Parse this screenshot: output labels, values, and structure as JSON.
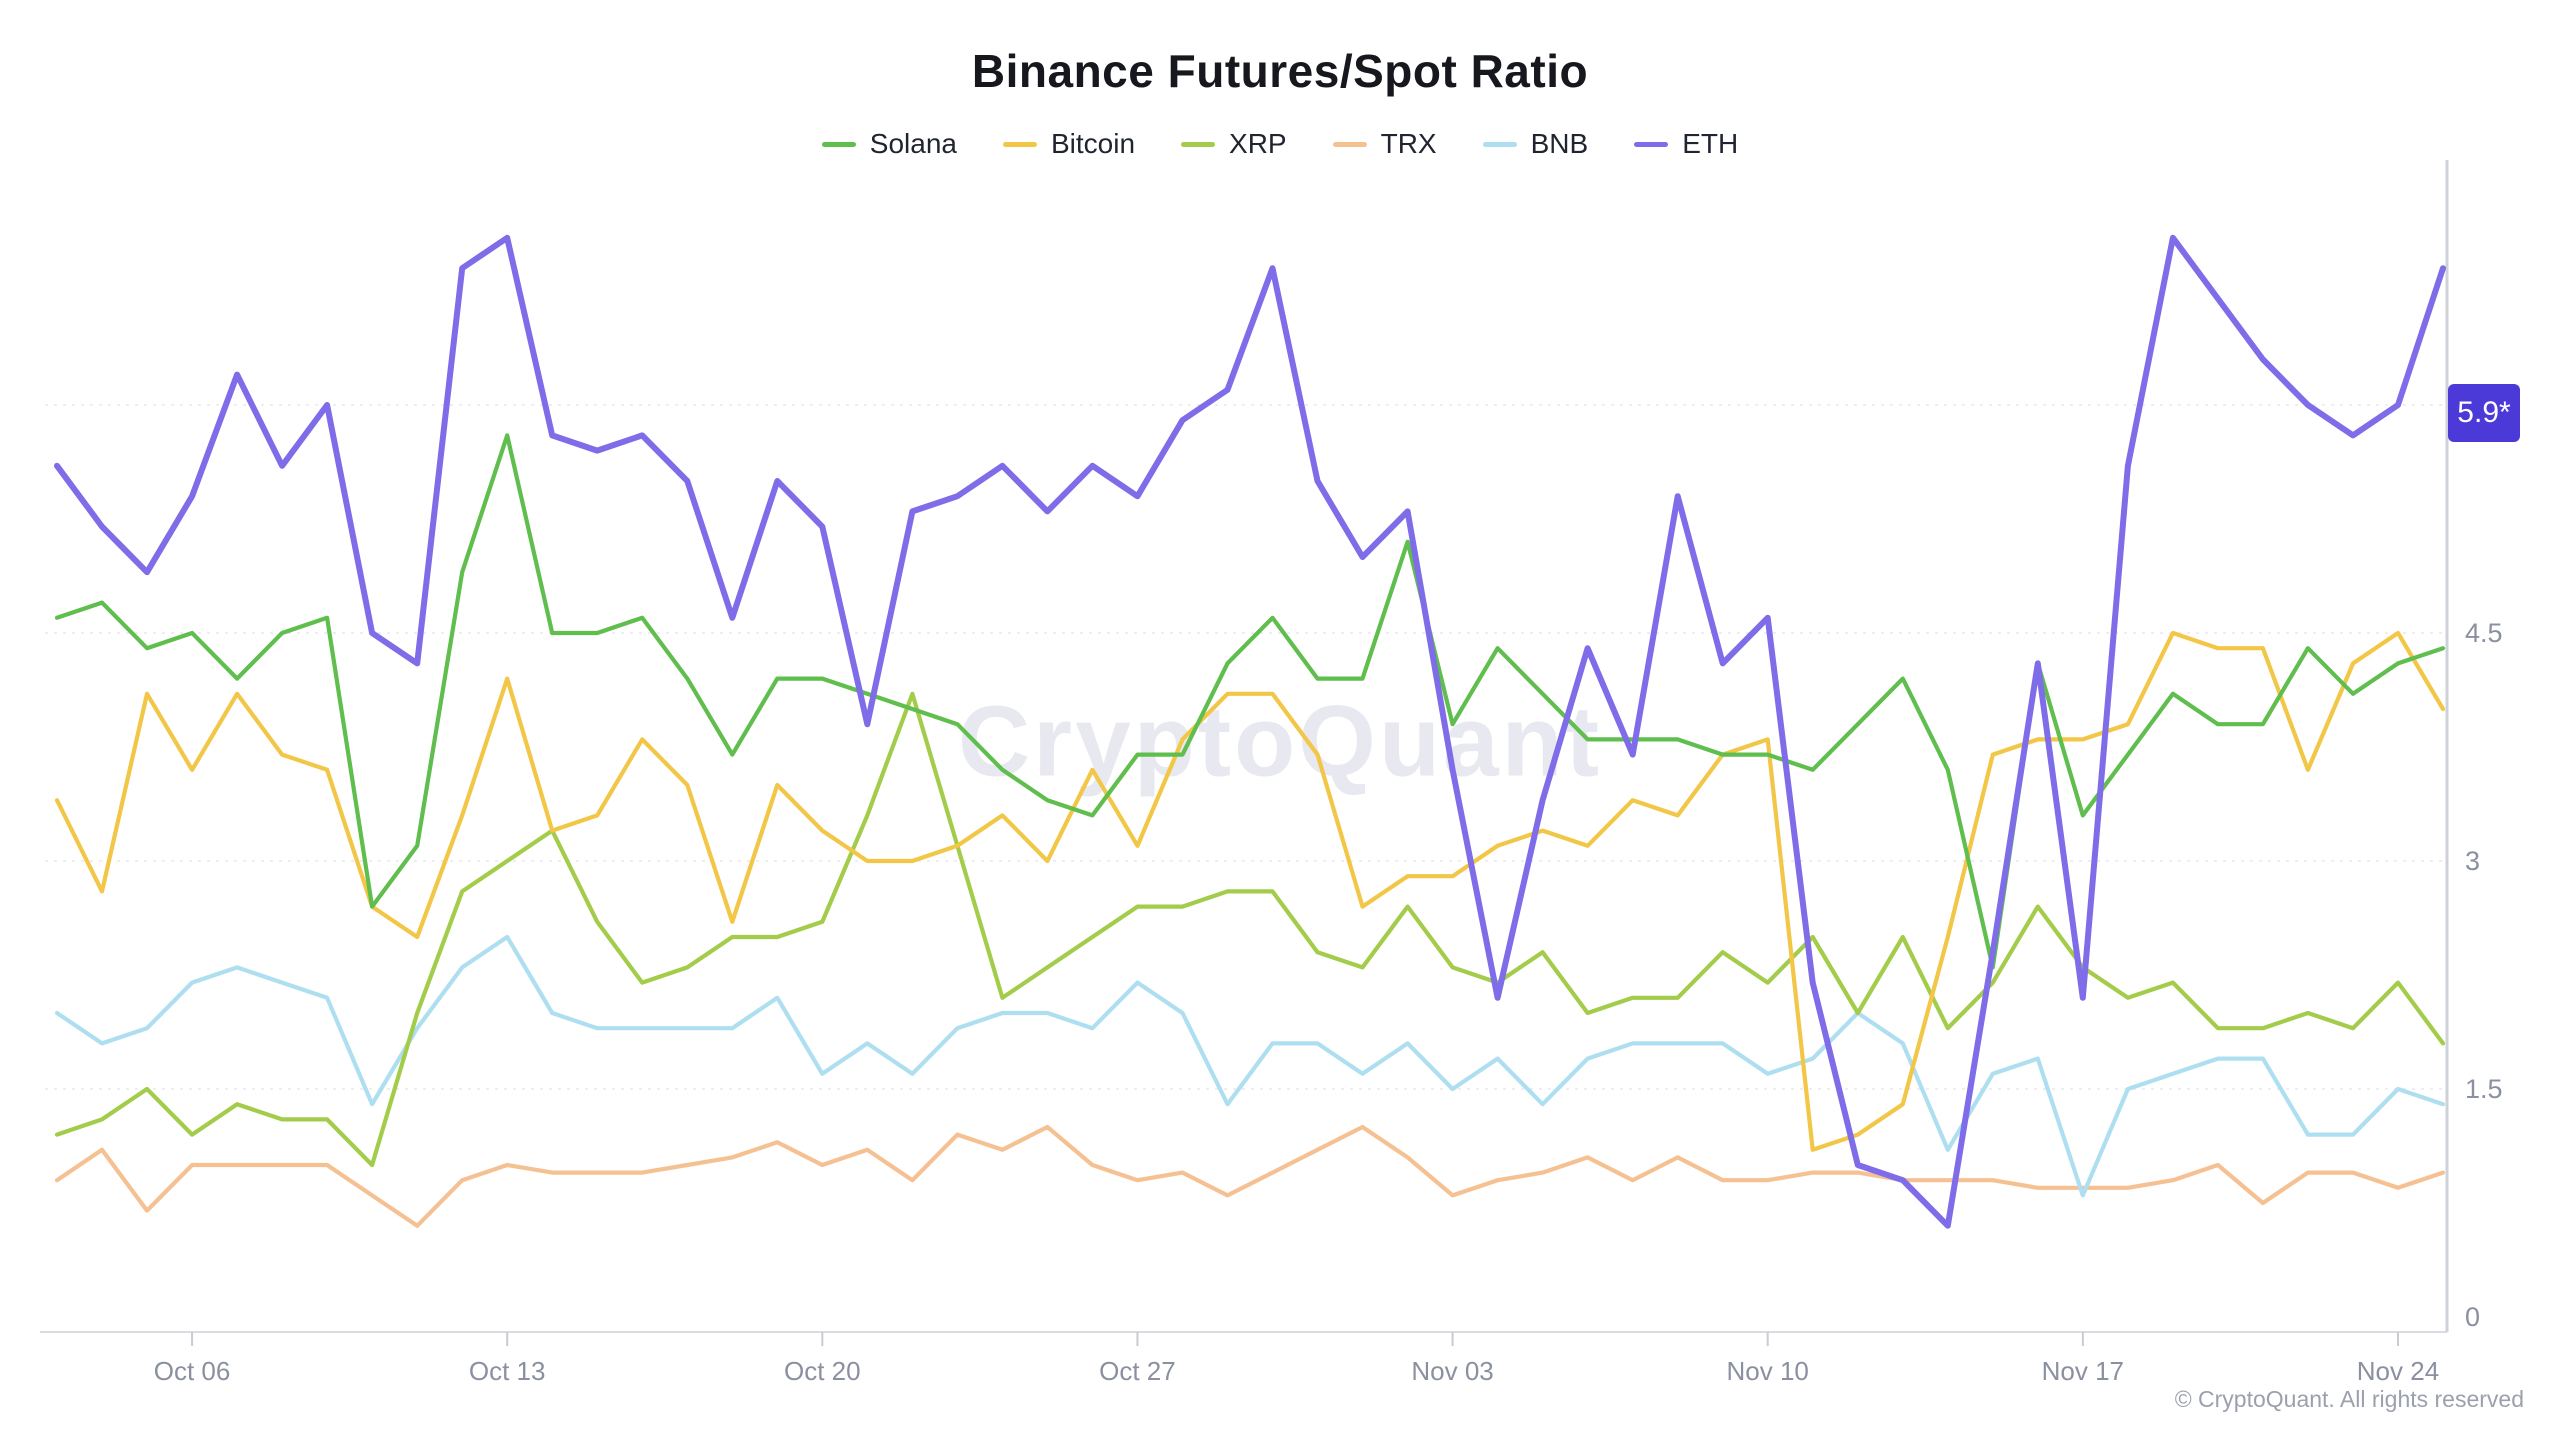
{
  "header": {
    "title": "Binance Futures/Spot Ratio"
  },
  "footer": {
    "copyright": "© CryptoQuant. All rights reserved"
  },
  "watermark": {
    "text": "CryptoQuant"
  },
  "badge": {
    "text": "5.9*",
    "series": "ETH",
    "value": 5.95,
    "color": "#4b3ad8"
  },
  "chart_data": {
    "type": "line",
    "title": "Binance Futures/Spot Ratio",
    "xlabel": "",
    "ylabel": "",
    "ylim": [
      0,
      7.6
    ],
    "y_axis_side": "right",
    "grid": "dotted-horizontal",
    "grid_levels": [
      1.5,
      3,
      4.5,
      6
    ],
    "y_tick_labels": [
      "0",
      "1.5",
      "3",
      "4.5"
    ],
    "y_tick_values": [
      0,
      1.5,
      3,
      4.5
    ],
    "legend_position": "top",
    "x_tick_labels": [
      "Oct 06",
      "Oct 13",
      "Oct 20",
      "Oct 27",
      "Nov 03",
      "Nov 10",
      "Nov 17",
      "Nov 24"
    ],
    "x_tick_indices": [
      3,
      10,
      17,
      24,
      31,
      38,
      45,
      52
    ],
    "x": [
      "Oct 03",
      "Oct 04",
      "Oct 05",
      "Oct 06",
      "Oct 07",
      "Oct 08",
      "Oct 09",
      "Oct 10",
      "Oct 11",
      "Oct 12",
      "Oct 13",
      "Oct 14",
      "Oct 15",
      "Oct 16",
      "Oct 17",
      "Oct 18",
      "Oct 19",
      "Oct 20",
      "Oct 21",
      "Oct 22",
      "Oct 23",
      "Oct 24",
      "Oct 25",
      "Oct 26",
      "Oct 27",
      "Oct 28",
      "Oct 29",
      "Oct 30",
      "Oct 31",
      "Nov 01",
      "Nov 02",
      "Nov 03",
      "Nov 04",
      "Nov 05",
      "Nov 06",
      "Nov 07",
      "Nov 08",
      "Nov 09",
      "Nov 10",
      "Nov 11",
      "Nov 12",
      "Nov 13",
      "Nov 14",
      "Nov 15",
      "Nov 16",
      "Nov 17",
      "Nov 18",
      "Nov 19",
      "Nov 20",
      "Nov 21",
      "Nov 22",
      "Nov 23",
      "Nov 24",
      "Nov 25"
    ],
    "series": [
      {
        "name": "Solana",
        "color": "#5fbe4d",
        "width": 4.2,
        "values": [
          4.6,
          4.7,
          4.4,
          4.5,
          4.2,
          4.5,
          4.6,
          2.7,
          3.1,
          4.9,
          5.8,
          4.5,
          4.5,
          4.6,
          4.2,
          3.7,
          4.2,
          4.2,
          4.1,
          4.0,
          3.9,
          3.6,
          3.4,
          3.3,
          3.7,
          3.7,
          4.3,
          4.6,
          4.2,
          4.2,
          5.1,
          3.9,
          4.4,
          4.1,
          3.8,
          3.8,
          3.8,
          3.7,
          3.7,
          3.6,
          3.9,
          4.2,
          3.6,
          2.3,
          4.3,
          3.3,
          3.7,
          4.1,
          3.9,
          3.9,
          4.4,
          4.1,
          4.3,
          4.4
        ]
      },
      {
        "name": "Bitcoin",
        "color": "#f2c646",
        "width": 4.2,
        "values": [
          3.4,
          2.8,
          4.1,
          3.6,
          4.1,
          3.7,
          3.6,
          2.7,
          2.5,
          3.3,
          4.2,
          3.2,
          3.3,
          3.8,
          3.5,
          2.6,
          3.5,
          3.2,
          3.0,
          3.0,
          3.1,
          3.3,
          3.0,
          3.6,
          3.1,
          3.8,
          4.1,
          4.1,
          3.7,
          2.7,
          2.9,
          2.9,
          3.1,
          3.2,
          3.1,
          3.4,
          3.3,
          3.7,
          3.8,
          1.1,
          1.2,
          1.4,
          2.5,
          3.7,
          3.8,
          3.8,
          3.9,
          4.5,
          4.4,
          4.4,
          3.6,
          4.3,
          4.5,
          4.0
        ]
      },
      {
        "name": "XRP",
        "color": "#a3cc4a",
        "width": 4.2,
        "values": [
          1.2,
          1.3,
          1.5,
          1.2,
          1.4,
          1.3,
          1.3,
          1.0,
          2.0,
          2.8,
          3.0,
          3.2,
          2.6,
          2.2,
          2.3,
          2.5,
          2.5,
          2.6,
          3.3,
          4.1,
          3.1,
          2.1,
          2.3,
          2.5,
          2.7,
          2.7,
          2.8,
          2.8,
          2.4,
          2.3,
          2.7,
          2.3,
          2.2,
          2.4,
          2.0,
          2.1,
          2.1,
          2.4,
          2.2,
          2.5,
          2.0,
          2.5,
          1.9,
          2.2,
          2.7,
          2.3,
          2.1,
          2.2,
          1.9,
          1.9,
          2.0,
          1.9,
          2.2,
          1.8
        ]
      },
      {
        "name": "TRX",
        "color": "#f5c193",
        "width": 4.2,
        "values": [
          0.9,
          1.1,
          0.7,
          1.0,
          1.0,
          1.0,
          1.0,
          0.8,
          0.6,
          0.9,
          1.0,
          0.95,
          0.95,
          0.95,
          1.0,
          1.05,
          1.15,
          1.0,
          1.1,
          0.9,
          1.2,
          1.1,
          1.25,
          1.0,
          0.9,
          0.95,
          0.8,
          0.95,
          1.1,
          1.25,
          1.05,
          0.8,
          0.9,
          0.95,
          1.05,
          0.9,
          1.05,
          0.9,
          0.9,
          0.95,
          0.95,
          0.9,
          0.9,
          0.9,
          0.85,
          0.85,
          0.85,
          0.9,
          1.0,
          0.75,
          0.95,
          0.95,
          0.85,
          0.95
        ]
      },
      {
        "name": "BNB",
        "color": "#aedff0",
        "width": 4.2,
        "values": [
          2.0,
          1.8,
          1.9,
          2.2,
          2.3,
          2.2,
          2.1,
          1.4,
          1.9,
          2.3,
          2.5,
          2.0,
          1.9,
          1.9,
          1.9,
          1.9,
          2.1,
          1.6,
          1.8,
          1.6,
          1.9,
          2.0,
          2.0,
          1.9,
          2.2,
          2.0,
          1.4,
          1.8,
          1.8,
          1.6,
          1.8,
          1.5,
          1.7,
          1.4,
          1.7,
          1.8,
          1.8,
          1.8,
          1.6,
          1.7,
          2.0,
          1.8,
          1.1,
          1.6,
          1.7,
          0.8,
          1.5,
          1.6,
          1.7,
          1.7,
          1.2,
          1.2,
          1.5,
          1.4
        ]
      },
      {
        "name": "ETH",
        "color": "#7e6ce8",
        "width": 6,
        "values": [
          5.6,
          5.2,
          4.9,
          5.4,
          6.2,
          5.6,
          6.0,
          4.5,
          4.3,
          6.9,
          7.1,
          5.8,
          5.7,
          5.8,
          5.5,
          4.6,
          5.5,
          5.2,
          3.9,
          5.3,
          5.4,
          5.6,
          5.3,
          5.6,
          5.4,
          5.9,
          6.1,
          6.9,
          5.5,
          5.0,
          5.3,
          3.6,
          2.1,
          3.4,
          4.4,
          3.7,
          5.4,
          4.3,
          4.6,
          2.2,
          1.0,
          0.9,
          0.6,
          2.4,
          4.3,
          2.1,
          5.6,
          7.1,
          6.7,
          6.3,
          6.0,
          5.8,
          6.0,
          6.9
        ]
      }
    ],
    "draw_order": [
      "TRX",
      "BNB",
      "XRP",
      "Bitcoin",
      "Solana",
      "ETH"
    ]
  }
}
